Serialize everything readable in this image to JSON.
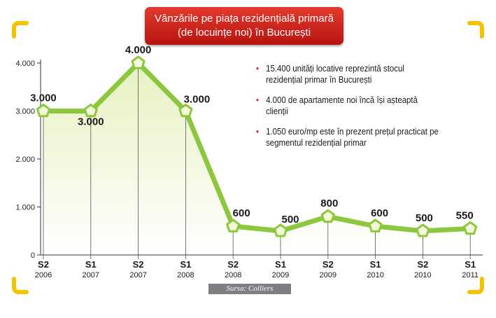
{
  "title": {
    "line1": "Vânzările pe piața rezidențială primară",
    "line2": "(de locuințe noi) în București"
  },
  "notes": [
    "15.400 unități locative reprezintă stocul rezidențial primar în București",
    "4.000 de apartamente noi încă își așteaptă clienții",
    "1.050 euro/mp este în prezent prețul practicat pe segmentul rezidențial primar"
  ],
  "source": "Sursa: Colliers",
  "colors": {
    "line": "#8dc63f",
    "marker_fill": "#f3f8d6",
    "area_top": "#e7f1c0",
    "bullet": "#d42420",
    "title_bg": "#cc2a22",
    "frame_corners": "#f3c300"
  },
  "chart_data": {
    "type": "line",
    "x": [
      {
        "period": "S2",
        "year": "2006"
      },
      {
        "period": "S1",
        "year": "2007"
      },
      {
        "period": "S2",
        "year": "2007"
      },
      {
        "period": "S1",
        "year": "2008"
      },
      {
        "period": "S2",
        "year": "2008"
      },
      {
        "period": "S1",
        "year": "2009"
      },
      {
        "period": "S2",
        "year": "2009"
      },
      {
        "period": "S1",
        "year": "2010"
      },
      {
        "period": "S2",
        "year": "2010"
      },
      {
        "period": "S1",
        "year": "2011"
      }
    ],
    "values": [
      3000,
      3000,
      4000,
      3000,
      600,
      500,
      800,
      600,
      500,
      550
    ],
    "labels": [
      "3.000",
      "3.000",
      "4.000",
      "3.000",
      "600",
      "500",
      "800",
      "600",
      "500",
      "550"
    ],
    "yticks": [
      0,
      1000,
      2000,
      3000,
      4000
    ],
    "ytick_labels": [
      "0",
      "1.000",
      "2.000",
      "3.000",
      "4.000"
    ],
    "ylim": [
      0,
      4000
    ],
    "grid": "vertical drop lines at each point",
    "legend": "none"
  }
}
